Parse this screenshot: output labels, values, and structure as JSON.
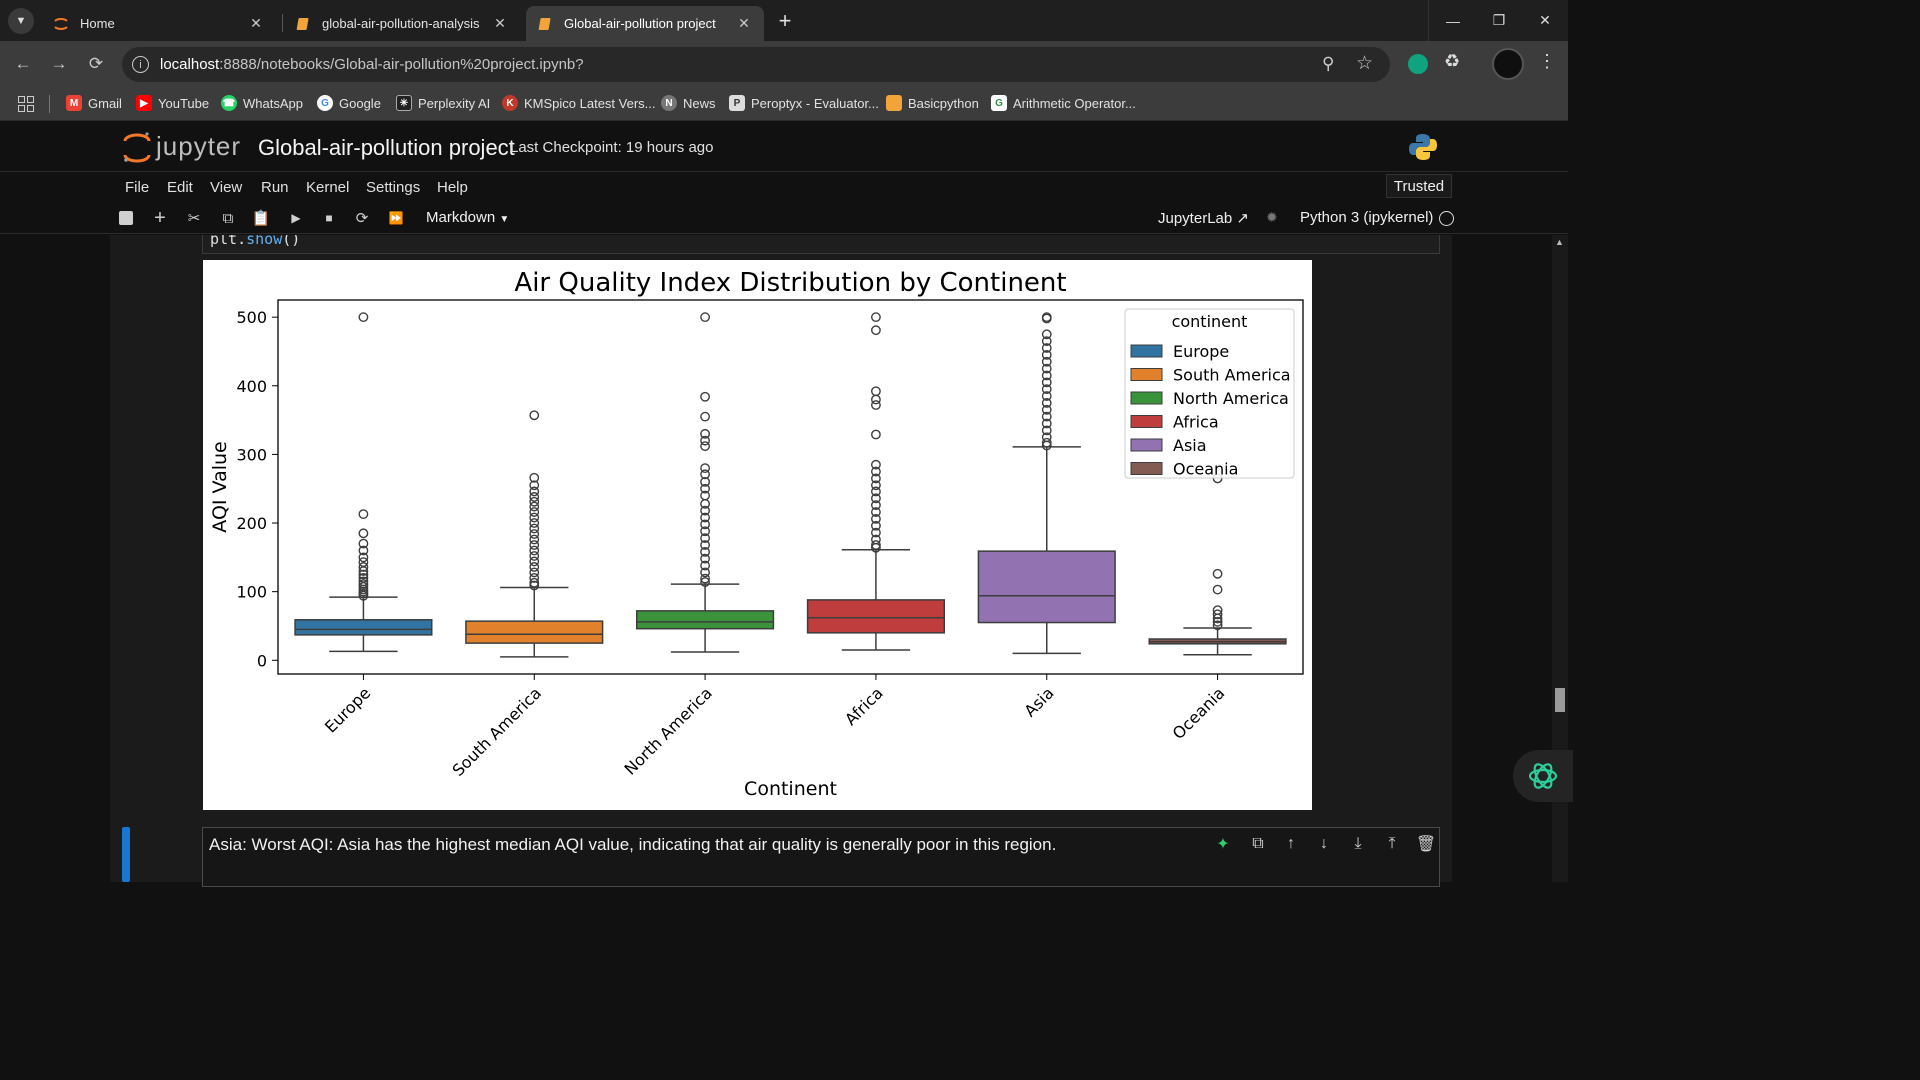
{
  "browser": {
    "tabs": [
      {
        "title": "Home",
        "active": false
      },
      {
        "title": "global-air-pollution-analysis",
        "active": false
      },
      {
        "title": "Global-air-pollution project",
        "active": true
      }
    ],
    "url_host": "localhost",
    "url_rest": ":8888/notebooks/Global-air-pollution%20project.ipynb?",
    "bookmarks": [
      "Gmail",
      "YouTube",
      "WhatsApp",
      "Google",
      "Perplexity AI",
      "KMSpico Latest Vers...",
      "News",
      "Peroptyx - Evaluator...",
      "Basicpython",
      "Arithmetic Operator..."
    ]
  },
  "jupyter": {
    "logo_text": "jupyter",
    "notebook_title": "Global-air-pollution project",
    "checkpoint": "Last Checkpoint: 19 hours ago",
    "trusted": "Trusted",
    "menu": [
      "File",
      "Edit",
      "View",
      "Run",
      "Kernel",
      "Settings",
      "Help"
    ],
    "cell_type": "Markdown",
    "jupyterlab_link": "JupyterLab",
    "kernel": "Python 3 (ipykernel)"
  },
  "code_tail": {
    "prefix": "plt.",
    "func": "show",
    "suffix": "()"
  },
  "markdown_cell": "Asia: Worst AQI: Asia has the highest median AQI value, indicating that air quality is generally poor in this region.",
  "chart_data": {
    "type": "box",
    "title": "Air Quality Index Distribution by Continent",
    "xlabel": "Continent",
    "ylabel": "AQI Value",
    "yticks": [
      0,
      100,
      200,
      300,
      400,
      500
    ],
    "ylim": [
      -20,
      525
    ],
    "legend_title": "continent",
    "legend_position": "top-right",
    "categories": [
      "Europe",
      "South America",
      "North America",
      "Africa",
      "Asia",
      "Oceania"
    ],
    "colors": [
      "#3274a1",
      "#e1812c",
      "#3a923a",
      "#c03d3e",
      "#9372b2",
      "#845b53"
    ],
    "boxes": [
      {
        "name": "Europe",
        "whisker_low": 13,
        "q1": 37,
        "median": 45,
        "q3": 59,
        "whisker_high": 92,
        "outliers": [
          500,
          213,
          185,
          170,
          160,
          150,
          143,
          136,
          130,
          125,
          120,
          115,
          111,
          107,
          103,
          100,
          97,
          94
        ]
      },
      {
        "name": "South America",
        "whisker_low": 5,
        "q1": 25,
        "median": 38,
        "q3": 57,
        "whisker_high": 106,
        "outliers": [
          357,
          266,
          255,
          246,
          238,
          231,
          224,
          216,
          208,
          200,
          192,
          184,
          176,
          168,
          160,
          152,
          144,
          136,
          128,
          120,
          113,
          109
        ]
      },
      {
        "name": "North America",
        "whisker_low": 12,
        "q1": 46,
        "median": 56,
        "q3": 72,
        "whisker_high": 111,
        "outliers": [
          500,
          384,
          355,
          330,
          320,
          312,
          280,
          271,
          260,
          250,
          240,
          228,
          218,
          208,
          198,
          188,
          178,
          168,
          158,
          148,
          138,
          128,
          119,
          114
        ]
      },
      {
        "name": "Africa",
        "whisker_low": 15,
        "q1": 40,
        "median": 62,
        "q3": 88,
        "whisker_high": 161,
        "outliers": [
          500,
          481,
          392,
          380,
          372,
          329,
          285,
          275,
          265,
          255,
          246,
          236,
          226,
          216,
          206,
          196,
          186,
          176,
          168,
          164
        ]
      },
      {
        "name": "Asia",
        "whisker_low": 10,
        "q1": 55,
        "median": 94,
        "q3": 159,
        "whisker_high": 311,
        "outliers": [
          500,
          498,
          475,
          465,
          455,
          445,
          435,
          425,
          415,
          405,
          395,
          385,
          375,
          365,
          355,
          345,
          335,
          325,
          317,
          313
        ]
      },
      {
        "name": "Oceania",
        "whisker_low": 8,
        "q1": 24,
        "median": 27,
        "q3": 31,
        "whisker_high": 47,
        "outliers": [
          265,
          126,
          103,
          73,
          67,
          61,
          56,
          51
        ]
      }
    ]
  }
}
